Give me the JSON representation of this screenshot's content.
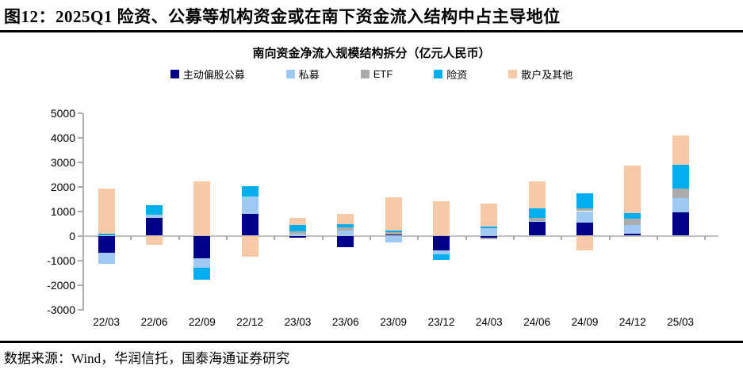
{
  "header": {
    "title": "图12：2025Q1 险资、公募等机构资金或在南下资金流入结构中占主导地位"
  },
  "chart_data": {
    "type": "bar",
    "stacked": true,
    "title": "南向资金净流入规模结构拆分（亿元人民币）",
    "unit": "亿元人民币",
    "categories": [
      "22/03",
      "22/06",
      "22/09",
      "22/12",
      "23/03",
      "23/06",
      "23/09",
      "23/12",
      "24/03",
      "24/06",
      "24/09",
      "24/12",
      "25/03"
    ],
    "series": [
      {
        "name": "主动偏股公募",
        "color": "#000088",
        "values": [
          -700,
          730,
          -930,
          900,
          -90,
          -480,
          60,
          -590,
          -90,
          550,
          520,
          80,
          950
        ]
      },
      {
        "name": "私募",
        "color": "#9FC9F3",
        "values": [
          -450,
          140,
          -380,
          700,
          90,
          220,
          -290,
          -160,
          300,
          60,
          480,
          360,
          590
        ]
      },
      {
        "name": "ETF",
        "color": "#ABABAB",
        "values": [
          0,
          0,
          0,
          0,
          100,
          120,
          70,
          0,
          -60,
          130,
          110,
          250,
          380
        ]
      },
      {
        "name": "险资",
        "color": "#00AEEF",
        "values": [
          80,
          370,
          -490,
          430,
          240,
          130,
          90,
          -240,
          80,
          380,
          620,
          240,
          970
        ]
      },
      {
        "name": "散户及其他",
        "color": "#F6C9A8",
        "values": [
          1850,
          -370,
          2220,
          -850,
          280,
          430,
          1340,
          1400,
          920,
          1080,
          -590,
          1910,
          1180
        ]
      }
    ],
    "ylim": [
      -3000,
      5000
    ],
    "yticks": [
      5000,
      4000,
      3000,
      2000,
      1000,
      0,
      -1000,
      -2000,
      -3000
    ],
    "legend_position": "top",
    "grid": false
  },
  "footer": {
    "source": "数据来源：Wind，华润信托，国泰海通证券研究"
  }
}
